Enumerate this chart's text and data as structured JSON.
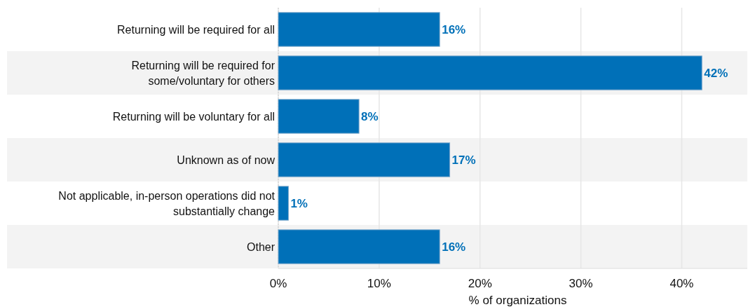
{
  "chart_data": {
    "type": "bar",
    "orientation": "horizontal",
    "categories": [
      "Returning will be required for all",
      "Returning will be required for some/voluntary for others",
      "Returning will be voluntary for all",
      "Unknown as of now",
      "Not applicable, in-person operations did not substantially change",
      "Other"
    ],
    "values": [
      16,
      42,
      8,
      17,
      1,
      16
    ],
    "value_labels": [
      "16%",
      "42%",
      "8%",
      "17%",
      "1%",
      "16%"
    ],
    "color": "#0070b8",
    "xlabel": "% of organizations",
    "xlim": [
      0,
      46.5
    ],
    "xticks": [
      {
        "value": 0,
        "label": "0%"
      },
      {
        "value": 10,
        "label": "10%"
      },
      {
        "value": 20,
        "label": "20%"
      },
      {
        "value": 30,
        "label": "30%"
      },
      {
        "value": 40,
        "label": "40%"
      }
    ],
    "grid": "x"
  }
}
